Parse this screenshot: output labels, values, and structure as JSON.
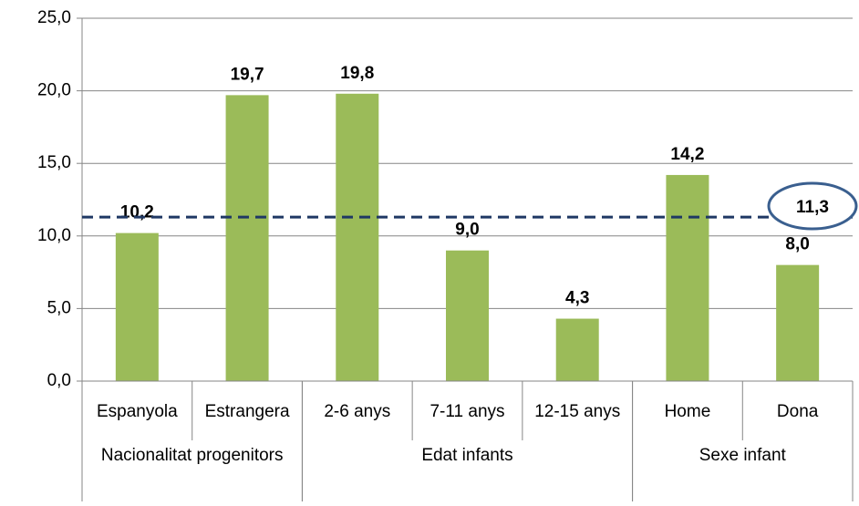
{
  "chart_data": {
    "type": "bar",
    "groups": [
      {
        "name": "Nacionalitat progenitors",
        "categories": [
          "Espanyola",
          "Estrangera"
        ]
      },
      {
        "name": "Edat infants",
        "categories": [
          "2-6 anys",
          "7-11 anys",
          "12-15 anys"
        ]
      },
      {
        "name": "Sexe infant",
        "categories": [
          "Home",
          "Dona"
        ]
      }
    ],
    "values": [
      10.2,
      19.7,
      19.8,
      9.0,
      4.3,
      14.2,
      8.0
    ],
    "value_labels": [
      "10,2",
      "19,7",
      "19,8",
      "9,0",
      "4,3",
      "14,2",
      "8,0"
    ],
    "color": "#9bbb59",
    "ylim": [
      0,
      25
    ],
    "yticks": [
      {
        "value": 0,
        "label": "0,0"
      },
      {
        "value": 5,
        "label": "5,0"
      },
      {
        "value": 10,
        "label": "10,0"
      },
      {
        "value": 15,
        "label": "15,0"
      },
      {
        "value": 20,
        "label": "20,0"
      },
      {
        "value": 25,
        "label": "25,0"
      }
    ],
    "grid": true,
    "reference_line": {
      "value": 11.3,
      "label": "11,3",
      "color": "#1f3864",
      "style": "dashed"
    }
  }
}
